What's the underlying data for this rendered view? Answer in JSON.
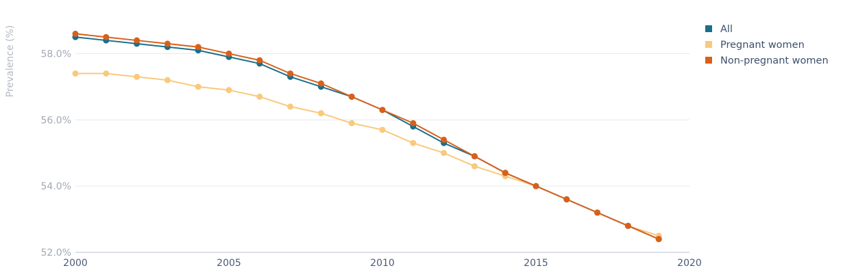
{
  "chart_data": {
    "type": "line",
    "title": "",
    "xlabel": "",
    "ylabel": "Prevalence (%)",
    "x": [
      2000,
      2001,
      2002,
      2003,
      2004,
      2005,
      2006,
      2007,
      2008,
      2009,
      2010,
      2011,
      2012,
      2013,
      2014,
      2015,
      2016,
      2017,
      2018,
      2019
    ],
    "xlim": [
      2000,
      2020
    ],
    "ylim": [
      52.0,
      59.0
    ],
    "x_ticks": [
      2000,
      2005,
      2010,
      2015,
      2020
    ],
    "y_ticks": [
      52.0,
      54.0,
      56.0,
      58.0
    ],
    "y_tick_labels": [
      "52.0%",
      "54.0%",
      "56.0%",
      "58.0%"
    ],
    "grid": "horizontal",
    "legend_position": "top-right",
    "series": [
      {
        "name": "All",
        "color": "#1a6f8c",
        "values": [
          58.5,
          58.4,
          58.3,
          58.2,
          58.1,
          57.9,
          57.7,
          57.3,
          57.0,
          56.7,
          56.3,
          55.8,
          55.3,
          54.9,
          54.4,
          54.0,
          53.6,
          53.2,
          52.8,
          52.4
        ]
      },
      {
        "name": "Pregnant women",
        "color": "#f9c97c",
        "values": [
          57.4,
          57.4,
          57.3,
          57.2,
          57.0,
          56.9,
          56.7,
          56.4,
          56.2,
          55.9,
          55.7,
          55.3,
          55.0,
          54.6,
          54.3,
          54.0,
          53.6,
          53.2,
          52.8,
          52.5
        ]
      },
      {
        "name": "Non-pregnant women",
        "color": "#d9601a",
        "values": [
          58.6,
          58.5,
          58.4,
          58.3,
          58.2,
          58.0,
          57.8,
          57.4,
          57.1,
          56.7,
          56.3,
          55.9,
          55.4,
          54.9,
          54.4,
          54.0,
          53.6,
          53.2,
          52.8,
          52.4
        ]
      }
    ]
  }
}
